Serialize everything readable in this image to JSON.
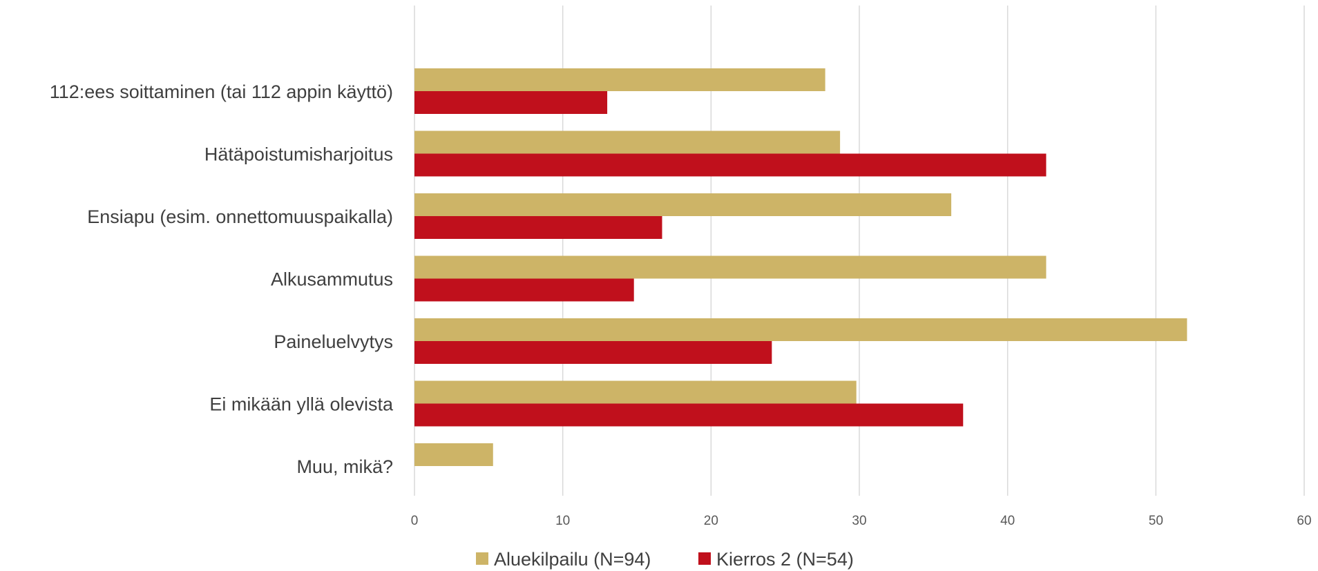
{
  "chart_data": {
    "type": "bar",
    "orientation": "horizontal",
    "categories": [
      "112:ees soittaminen (tai 112 appin käyttö)",
      "Hätäpoistumisharjoitus",
      "Ensiapu (esim. onnettomuuspaikalla)",
      "Alkusammutus",
      "Paineluelvytys",
      "Ei mikään yllä olevista",
      "Muu, mikä?"
    ],
    "series": [
      {
        "name": "Aluekilpailu (N=94)",
        "color": "#cdb467",
        "values": [
          27.7,
          28.7,
          36.2,
          42.6,
          52.1,
          29.8,
          5.3
        ]
      },
      {
        "name": "Kierros 2 (N=54)",
        "color": "#c0101c",
        "values": [
          13.0,
          42.6,
          16.7,
          14.8,
          24.1,
          37.0,
          0
        ]
      }
    ],
    "xlim": [
      0,
      60
    ],
    "xticks": [
      "0",
      "10",
      "20",
      "30",
      "40",
      "50",
      "60"
    ],
    "grid": "vertical",
    "legend_position": "bottom",
    "title": "",
    "xlabel": "",
    "ylabel": ""
  }
}
